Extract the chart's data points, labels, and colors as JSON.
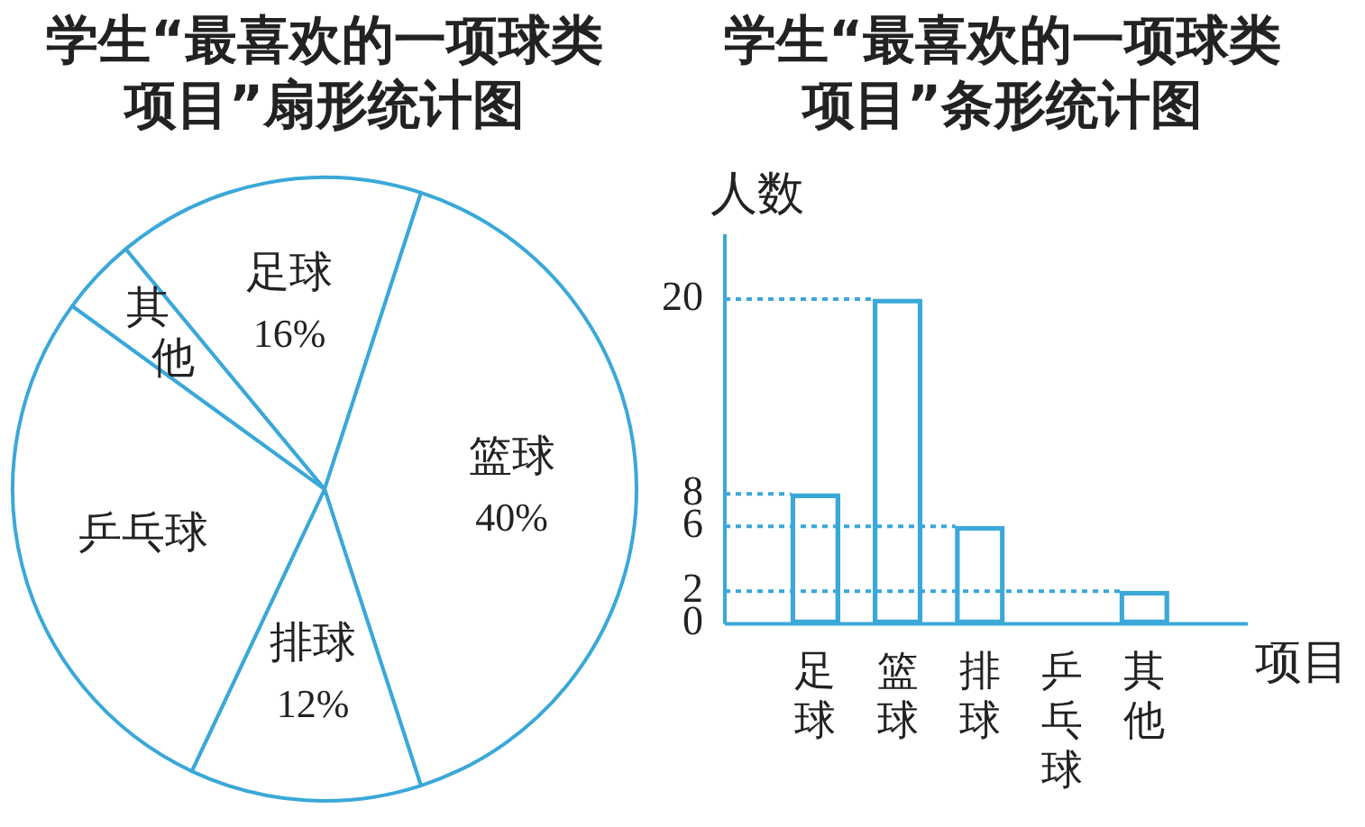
{
  "chart_data": [
    {
      "type": "pie",
      "title": "学生“最喜欢的一项球类项目”扇形统计图",
      "categories": [
        "足球",
        "篮球",
        "排球",
        "乒乓球",
        "其他"
      ],
      "values": [
        16,
        40,
        12,
        28,
        4
      ],
      "value_labels": [
        "16%",
        "40%",
        "12%",
        null,
        null
      ],
      "colors": [
        "#3aa8d8",
        "#3aa8d8",
        "#3aa8d8",
        "#3aa8d8",
        "#3aa8d8"
      ],
      "legend": false
    },
    {
      "type": "bar",
      "title": "学生“最喜欢的一项球类项目”条形统计图",
      "xlabel": "项目",
      "ylabel": "人数",
      "categories": [
        "足球",
        "篮球",
        "排球",
        "乒乓球",
        "其他"
      ],
      "values": [
        8,
        20,
        6,
        null,
        2
      ],
      "color": "#3aa8d8",
      "ylim": [
        0,
        24
      ],
      "yticks": [
        0,
        2,
        6,
        8,
        20
      ],
      "ref_lines": [
        {
          "axis": "y",
          "value": 20,
          "line_style": "dotted"
        },
        {
          "axis": "y",
          "value": 8,
          "line_style": "dotted"
        },
        {
          "axis": "y",
          "value": 6,
          "line_style": "dotted"
        },
        {
          "axis": "y",
          "value": 2,
          "line_style": "dotted"
        }
      ],
      "grid": false,
      "legend": false
    }
  ]
}
